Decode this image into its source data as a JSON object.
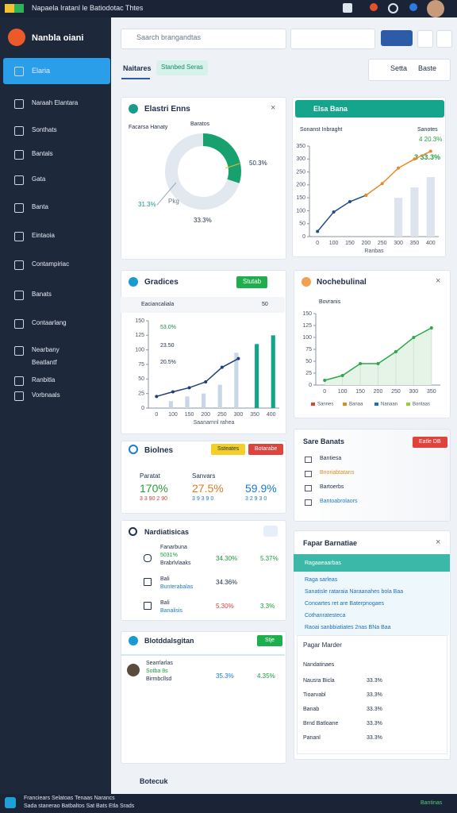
{
  "topbar": {
    "title": "Napaela Iratanl le Batiodotac Thtes"
  },
  "sidebar": {
    "brand": "Nanbla oiani",
    "items": [
      "Elaria",
      "Naraah Elantara",
      "Sonthats",
      "Bantals",
      "Gata",
      "Banta",
      "Eintaoia",
      "Contampiriac",
      "Banats",
      "Contaarlang",
      "Nearbany",
      "Beatlantf",
      "Ranbitla",
      "Vorbnaals"
    ]
  },
  "search": {
    "placeholder": "Saarch brangandtas"
  },
  "tabs": [
    "Naitares",
    "Stanbed Seras"
  ],
  "toolbar": [
    "Setta",
    "Baste"
  ],
  "chart_data": [
    {
      "type": "pie",
      "title": "Elastri Enns",
      "subtitle_left": "Facarsa Hanaty",
      "subtitle_right": "Baratos",
      "values": [
        30,
        70
      ],
      "colors": [
        "#16a16f",
        "#e2e8f0"
      ],
      "annotations": [
        "50.3%",
        "31.3%",
        "33.3%",
        "Pkg"
      ]
    },
    {
      "type": "line",
      "title": "Elsa Bana",
      "subtitle": "Sonanst Inbraght",
      "subtitle_right": "Sanotes",
      "xlabel": "Ranbas",
      "categories": [
        "0",
        "100",
        "150",
        "200",
        "250",
        "300",
        "350",
        "400"
      ],
      "ylim": [
        0,
        350
      ],
      "yticks": [
        0,
        50,
        100,
        150,
        200,
        250,
        300,
        350
      ],
      "series": [
        {
          "kind": "bar",
          "color": "#dde4ee",
          "values": [
            null,
            null,
            null,
            null,
            null,
            150,
            190,
            230
          ]
        },
        {
          "kind": "line",
          "color": "#1f4e8c",
          "values": [
            20,
            95,
            135,
            160,
            null,
            null,
            null,
            null
          ]
        },
        {
          "kind": "line",
          "color": "#e8892b",
          "values": [
            null,
            null,
            null,
            160,
            205,
            265,
            300,
            330
          ]
        }
      ],
      "annotations": [
        "4 20.3%",
        "3 33.3%"
      ]
    },
    {
      "type": "combo",
      "title": "Gradices",
      "button": "Stutab",
      "filter": "Eaciancaliala",
      "filter_value": "50",
      "xlabel": "Saanarnnl rahea",
      "categories": [
        "0",
        "100",
        "150",
        "200",
        "250",
        "300",
        "350",
        "400"
      ],
      "ylim": [
        0,
        150
      ],
      "yticks": [
        0,
        25,
        50,
        75,
        100,
        125,
        150
      ],
      "series": [
        {
          "kind": "bar",
          "color": "#c9d6e8",
          "values": [
            0,
            12,
            20,
            25,
            40,
            95,
            null,
            null
          ]
        },
        {
          "kind": "bar",
          "color": "#13a58a",
          "values": [
            null,
            null,
            null,
            null,
            null,
            null,
            110,
            125
          ]
        },
        {
          "kind": "line",
          "color": "#1f3f7a",
          "values": [
            20,
            28,
            35,
            45,
            70,
            85,
            null,
            null
          ]
        }
      ],
      "annotations": [
        "53.0%",
        "23.50",
        "20.5%"
      ]
    },
    {
      "type": "line",
      "title": "Nochebulinal",
      "subtitle": "Bovranis",
      "categories": [
        "0",
        "100",
        "150",
        "200",
        "250",
        "300",
        "350"
      ],
      "ylim": [
        0,
        150
      ],
      "yticks": [
        0,
        25,
        50,
        75,
        100,
        125,
        150
      ],
      "series": [
        {
          "kind": "line",
          "color": "#2aa84a",
          "fill": "#e6f4e8",
          "values": [
            10,
            20,
            45,
            45,
            70,
            100,
            120
          ]
        }
      ],
      "legend": [
        "Sannes",
        "Banaa",
        "Nanaan",
        "Bontaas"
      ]
    }
  ],
  "overview": {
    "title": "Biolnes",
    "buttons": [
      "Ssteates",
      "Botarabe"
    ],
    "stats": [
      {
        "label": "Paratat",
        "value": "170%",
        "sub": "3 3 90 2 90"
      },
      {
        "label": "Sanvars",
        "value": "27.5%",
        "sub": "3 9 3 9 0"
      },
      {
        "value": "59.9%",
        "sub": "3 2 9 3 0"
      }
    ]
  },
  "alerts": {
    "title": "Sare Banats",
    "button": "Eatle DB",
    "items": [
      "Bantiesa",
      "Bnoriabtatans",
      "Bartoerbs",
      "Bantoabrolaors"
    ]
  },
  "metrics": {
    "title": "Nardiatisicas",
    "header": "Fanarbuna",
    "rows": [
      {
        "name": "5031%",
        "sub": "Brabrlvlaaks",
        "a": "34.30%",
        "b": "5.37%"
      },
      {
        "name": "Bali",
        "sub": "Bunterabalas",
        "a": "34.36%"
      },
      {
        "name": "Bali",
        "sub": "Banalisis",
        "a": "5.30%",
        "b": "3.3%"
      }
    ]
  },
  "panel": {
    "title": "Fapar Barnatiae",
    "highlight": "Ragaaeaarbas",
    "links": [
      "Raga sarleas",
      "Sanatisle rataraia Naraanahes bola Baa",
      "Conoartes ret are Baterpnogaes",
      "Cothanratesteca",
      "Raoai sanbbiatiates 2nas BNa Baa"
    ],
    "sub_title": "Pagar Marder",
    "table_header": "Nandatinaes",
    "rows": [
      [
        "Nausra Bicla",
        "33.3%"
      ],
      [
        "Tioarvabl",
        "33.3%"
      ],
      [
        "Banab",
        "33.3%"
      ],
      [
        "Brnd Batloane",
        "33.3%"
      ],
      [
        "Pananl",
        "33.3%"
      ]
    ]
  },
  "team": {
    "title": "Blotddalsgitan",
    "button": "Stje",
    "row": {
      "name": "Searrlarlas",
      "tag": "Sotba 8s",
      "sub": "Birmbcllsd",
      "a": "35.3%",
      "b": "4.35%"
    }
  },
  "footer": {
    "title": "Botecuk"
  },
  "statusbar": {
    "lines": [
      "Franciears Selatoas Tenaas Narancs",
      "Sada stanerao Batbaltos Sat Bats Etla Srads"
    ],
    "right": "Bantinas"
  }
}
